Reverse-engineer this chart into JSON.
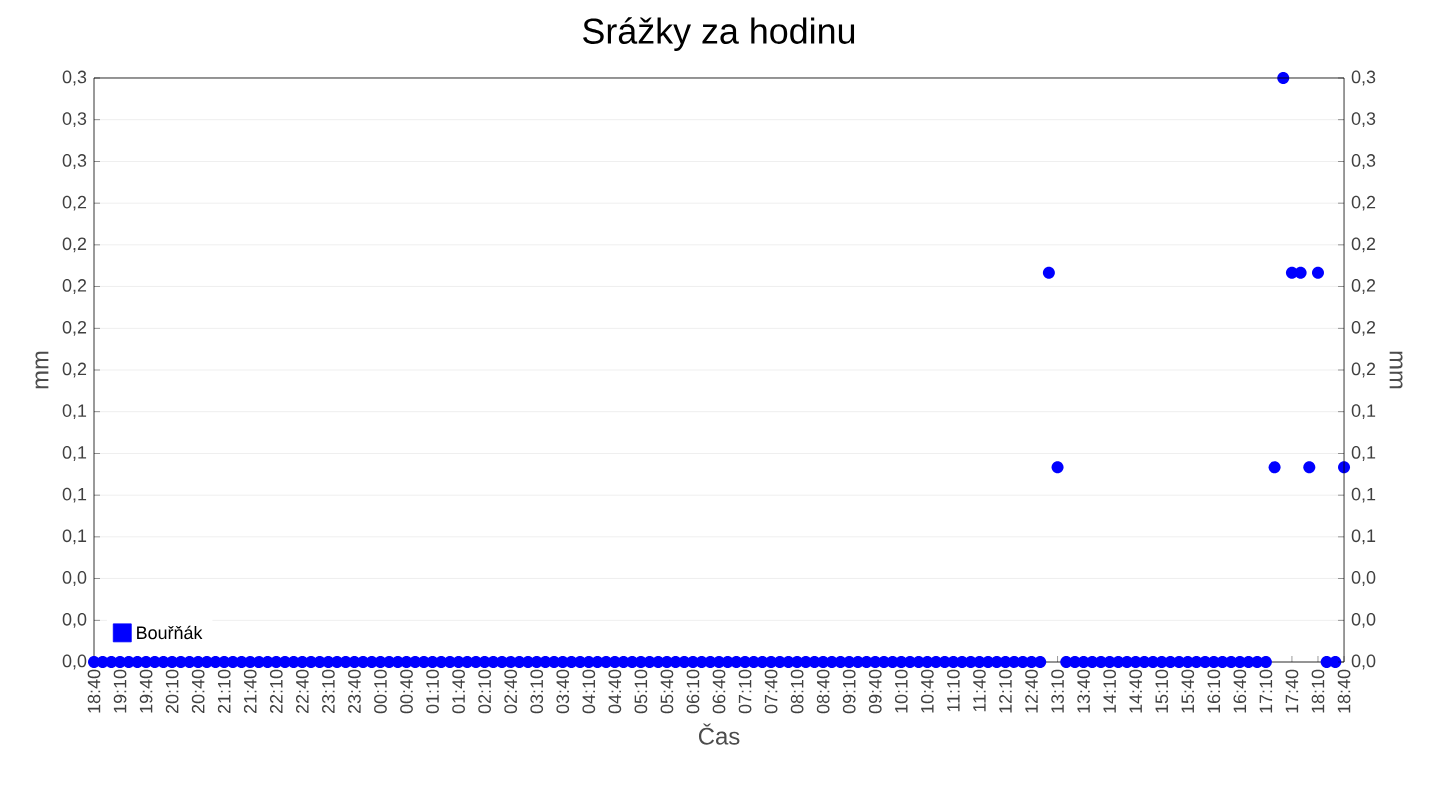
{
  "chart_data": {
    "type": "scatter",
    "title": "Srážky za hodinu",
    "xlabel": "Čas",
    "ylabel": "mm",
    "y2label": "mm",
    "categories": [
      "18:40",
      null,
      null,
      "19:10",
      null,
      null,
      "19:40",
      null,
      null,
      "20:10",
      null,
      null,
      "20:40",
      null,
      null,
      "21:10",
      null,
      null,
      "21:40",
      null,
      null,
      "22:10",
      null,
      null,
      "22:40",
      null,
      null,
      "23:10",
      null,
      null,
      "23:40",
      null,
      null,
      "00:10",
      null,
      null,
      "00:40",
      null,
      null,
      "01:10",
      null,
      null,
      "01:40",
      null,
      null,
      "02:10",
      null,
      null,
      "02:40",
      null,
      null,
      "03:10",
      null,
      null,
      "03:40",
      null,
      null,
      "04:10",
      null,
      null,
      "04:40",
      null,
      null,
      "05:10",
      null,
      null,
      "05:40",
      null,
      null,
      "06:10",
      null,
      null,
      "06:40",
      null,
      null,
      "07:10",
      null,
      null,
      "07:40",
      null,
      null,
      "08:10",
      null,
      null,
      "08:40",
      null,
      null,
      "09:10",
      null,
      null,
      "09:40",
      null,
      null,
      "10:10",
      null,
      null,
      "10:40",
      null,
      null,
      "11:10",
      null,
      null,
      "11:40",
      null,
      null,
      "12:10",
      null,
      null,
      "12:40",
      null,
      null,
      "13:10",
      null,
      null,
      "13:40",
      null,
      null,
      "14:10",
      null,
      null,
      "14:40",
      null,
      null,
      "15:10",
      null,
      null,
      "15:40",
      null,
      null,
      "16:10",
      null,
      null,
      "16:40",
      null,
      null,
      "17:10",
      null,
      null,
      "17:40",
      null,
      null,
      "18:10",
      null,
      null,
      "18:40"
    ],
    "series": [
      {
        "name": "Bouřňák",
        "color": "#0000ff",
        "values": [
          0,
          0,
          0,
          0,
          0,
          0,
          0,
          0,
          0,
          0,
          0,
          0,
          0,
          0,
          0,
          0,
          0,
          0,
          0,
          0,
          0,
          0,
          0,
          0,
          0,
          0,
          0,
          0,
          0,
          0,
          0,
          0,
          0,
          0,
          0,
          0,
          0,
          0,
          0,
          0,
          0,
          0,
          0,
          0,
          0,
          0,
          0,
          0,
          0,
          0,
          0,
          0,
          0,
          0,
          0,
          0,
          0,
          0,
          0,
          0,
          0,
          0,
          0,
          0,
          0,
          0,
          0,
          0,
          0,
          0,
          0,
          0,
          0,
          0,
          0,
          0,
          0,
          0,
          0,
          0,
          0,
          0,
          0,
          0,
          0,
          0,
          0,
          0,
          0,
          0,
          0,
          0,
          0,
          0,
          0,
          0,
          0,
          0,
          0,
          0,
          0,
          0,
          0,
          0,
          0,
          0,
          0,
          0,
          0,
          0,
          0.2,
          0.1,
          0,
          0,
          0,
          0,
          0,
          0,
          0,
          0,
          0,
          0,
          0,
          0,
          0,
          0,
          0,
          0,
          0,
          0,
          0,
          0,
          0,
          0,
          0,
          0,
          0.1,
          0.3,
          0.2,
          0.2,
          0.1,
          0.2,
          0,
          0,
          0.1
        ]
      }
    ],
    "marker": "circle",
    "grid": "y",
    "legend": "bottom left",
    "ylim": [
      0,
      0.3
    ],
    "yticks": [
      {
        "value": 0,
        "label": "0,0"
      },
      {
        "value": 0.0214,
        "label": "0,0"
      },
      {
        "value": 0.0429,
        "label": "0,0"
      },
      {
        "value": 0.0643,
        "label": "0,1"
      },
      {
        "value": 0.0857,
        "label": "0,1"
      },
      {
        "value": 0.1071,
        "label": "0,1"
      },
      {
        "value": 0.1286,
        "label": "0,1"
      },
      {
        "value": 0.15,
        "label": "0,2"
      },
      {
        "value": 0.1714,
        "label": "0,2"
      },
      {
        "value": 0.1929,
        "label": "0,2"
      },
      {
        "value": 0.2143,
        "label": "0,2"
      },
      {
        "value": 0.2357,
        "label": "0,2"
      },
      {
        "value": 0.2571,
        "label": "0,3"
      },
      {
        "value": 0.2786,
        "label": "0,3"
      },
      {
        "value": 0.3,
        "label": "0,3"
      }
    ],
    "y2lim": [
      0,
      0.3
    ],
    "y2ticks": [
      {
        "value": 0,
        "label": "0,0"
      },
      {
        "value": 0.0214,
        "label": "0,0"
      },
      {
        "value": 0.0429,
        "label": "0,0"
      },
      {
        "value": 0.0643,
        "label": "0,1"
      },
      {
        "value": 0.0857,
        "label": "0,1"
      },
      {
        "value": 0.1071,
        "label": "0,1"
      },
      {
        "value": 0.1286,
        "label": "0,1"
      },
      {
        "value": 0.15,
        "label": "0,2"
      },
      {
        "value": 0.1714,
        "label": "0,2"
      },
      {
        "value": 0.1929,
        "label": "0,2"
      },
      {
        "value": 0.2143,
        "label": "0,2"
      },
      {
        "value": 0.2357,
        "label": "0,2"
      },
      {
        "value": 0.2571,
        "label": "0,3"
      },
      {
        "value": 0.2786,
        "label": "0,3"
      },
      {
        "value": 0.3,
        "label": "0,3"
      }
    ]
  }
}
